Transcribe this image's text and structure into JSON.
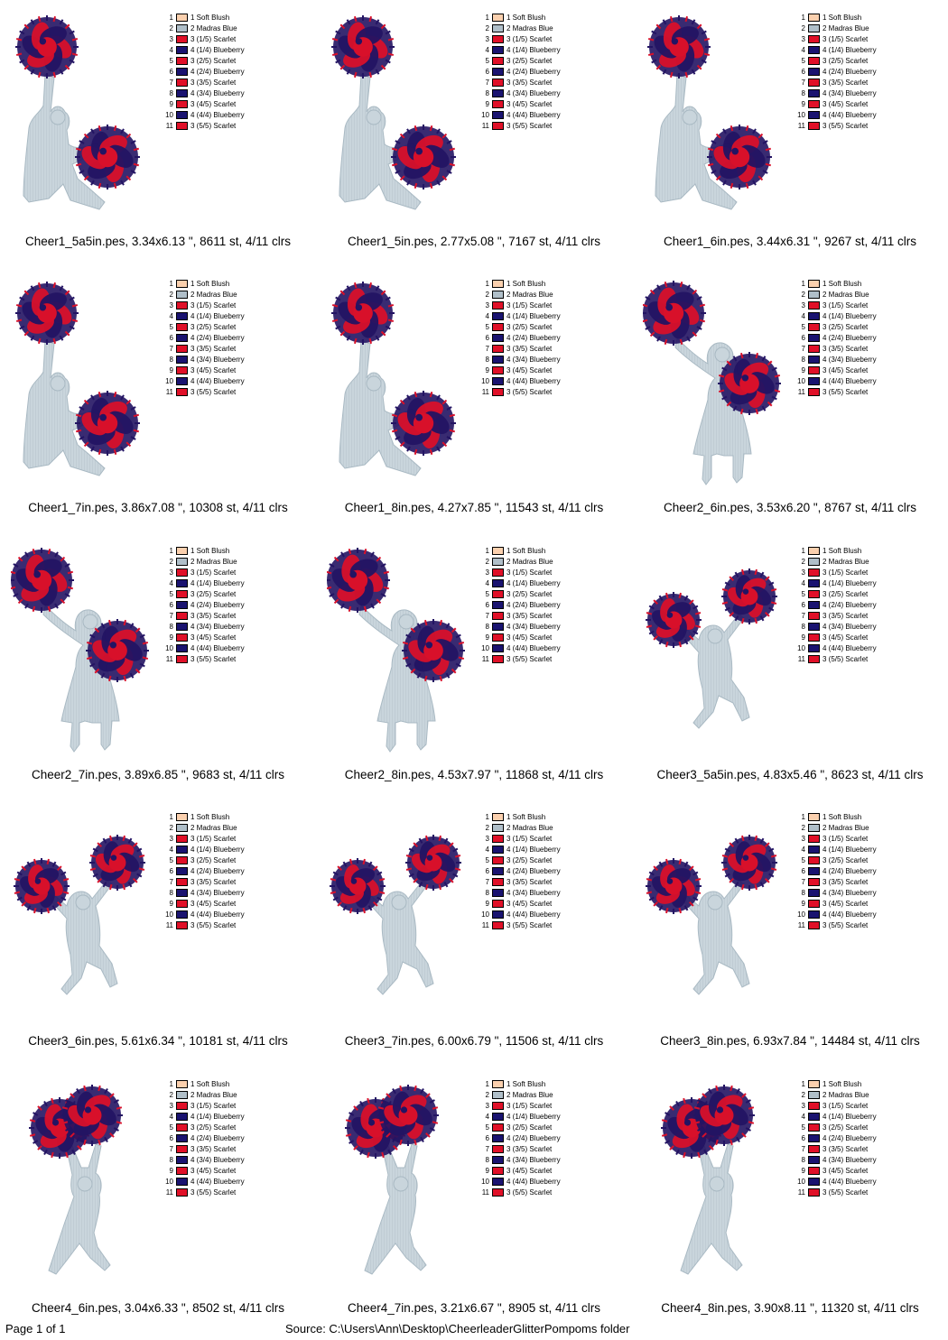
{
  "legend": [
    {
      "num": "1",
      "label": "1 Soft Blush",
      "color": "#fbd0ae"
    },
    {
      "num": "2",
      "label": "2 Madras Blue",
      "color": "#b0bfc9"
    },
    {
      "num": "3",
      "label": "3 (1/5) Scarlet",
      "color": "#e01028"
    },
    {
      "num": "4",
      "label": "4 (1/4) Blueberry",
      "color": "#1a1370"
    },
    {
      "num": "5",
      "label": "3 (2/5) Scarlet",
      "color": "#e01028"
    },
    {
      "num": "6",
      "label": "4 (2/4) Blueberry",
      "color": "#1a1370"
    },
    {
      "num": "7",
      "label": "3 (3/5) Scarlet",
      "color": "#e01028"
    },
    {
      "num": "8",
      "label": "4 (3/4) Blueberry",
      "color": "#1a1370"
    },
    {
      "num": "9",
      "label": "3 (4/5) Scarlet",
      "color": "#e01028"
    },
    {
      "num": "10",
      "label": "4 (4/4) Blueberry",
      "color": "#1a1370"
    },
    {
      "num": "11",
      "label": "3 (5/5) Scarlet",
      "color": "#e01028"
    }
  ],
  "colors": {
    "silhouette": "#c9d5dc",
    "silhouette_stroke": "#a9b9c3",
    "pompom_red": "#d8102a",
    "pompom_blue": "#231463"
  },
  "designs": [
    {
      "caption": "Cheer1_5a5in.pes, 3.34x6.13 \", 8611 st, 4/11 clrs",
      "pose": "cheer1"
    },
    {
      "caption": "Cheer1_5in.pes, 2.77x5.08 \", 7167 st, 4/11 clrs",
      "pose": "cheer1"
    },
    {
      "caption": "Cheer1_6in.pes, 3.44x6.31 \", 9267 st, 4/11 clrs",
      "pose": "cheer1"
    },
    {
      "caption": "Cheer1_7in.pes, 3.86x7.08 \", 10308 st, 4/11 clrs",
      "pose": "cheer1"
    },
    {
      "caption": "Cheer1_8in.pes, 4.27x7.85 \", 11543 st, 4/11 clrs",
      "pose": "cheer1"
    },
    {
      "caption": "Cheer2_6in.pes, 3.53x6.20 \", 8767 st, 4/11 clrs",
      "pose": "cheer2"
    },
    {
      "caption": "Cheer2_7in.pes, 3.89x6.85 \", 9683 st, 4/11 clrs",
      "pose": "cheer2"
    },
    {
      "caption": "Cheer2_8in.pes, 4.53x7.97 \", 11868 st, 4/11 clrs",
      "pose": "cheer2"
    },
    {
      "caption": "Cheer3_5a5in.pes, 4.83x5.46 \", 8623 st, 4/11 clrs",
      "pose": "cheer3"
    },
    {
      "caption": "Cheer3_6in.pes, 5.61x6.34 \", 10181 st, 4/11 clrs",
      "pose": "cheer3"
    },
    {
      "caption": "Cheer3_7in.pes, 6.00x6.79 \", 11506 st, 4/11 clrs",
      "pose": "cheer3"
    },
    {
      "caption": "Cheer3_8in.pes, 6.93x7.84 \", 14484 st, 4/11 clrs",
      "pose": "cheer3"
    },
    {
      "caption": "Cheer4_6in.pes, 3.04x6.33 \", 8502 st, 4/11 clrs",
      "pose": "cheer4"
    },
    {
      "caption": "Cheer4_7in.pes, 3.21x6.67 \", 8905 st, 4/11 clrs",
      "pose": "cheer4"
    },
    {
      "caption": "Cheer4_8in.pes, 3.90x8.11 \", 11320 st, 4/11 clrs",
      "pose": "cheer4"
    }
  ],
  "footer": {
    "page": "Page 1 of 1",
    "source": "Source: C:\\Users\\Ann\\Desktop\\CheerleaderGlitterPompoms folder"
  }
}
